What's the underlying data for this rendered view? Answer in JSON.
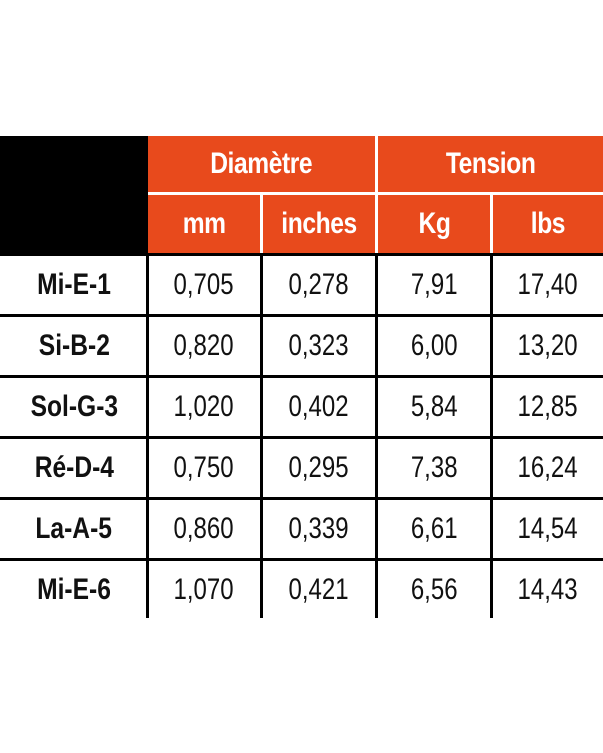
{
  "header": {
    "group_diameter": "Diamètre",
    "group_tension": "Tension",
    "cols": [
      "mm",
      "inches",
      "Kg",
      "lbs"
    ]
  },
  "rows": [
    {
      "label": "Mi-E-1",
      "mm": "0,705",
      "inches": "0,278",
      "kg": "7,91",
      "lbs": "17,40"
    },
    {
      "label": "Si-B-2",
      "mm": "0,820",
      "inches": "0,323",
      "kg": "6,00",
      "lbs": "13,20"
    },
    {
      "label": "Sol-G-3",
      "mm": "1,020",
      "inches": "0,402",
      "kg": "5,84",
      "lbs": "12,85"
    },
    {
      "label": "Ré-D-4",
      "mm": "0,750",
      "inches": "0,295",
      "kg": "7,38",
      "lbs": "16,24"
    },
    {
      "label": "La-A-5",
      "mm": "0,860",
      "inches": "0,339",
      "kg": "6,61",
      "lbs": "14,54"
    },
    {
      "label": "Mi-E-6",
      "mm": "1,070",
      "inches": "0,421",
      "kg": "6,56",
      "lbs": "14,43"
    }
  ],
  "colors": {
    "header_bg": "#e84a1c",
    "corner_bg": "#000000",
    "grid": "#000000"
  }
}
